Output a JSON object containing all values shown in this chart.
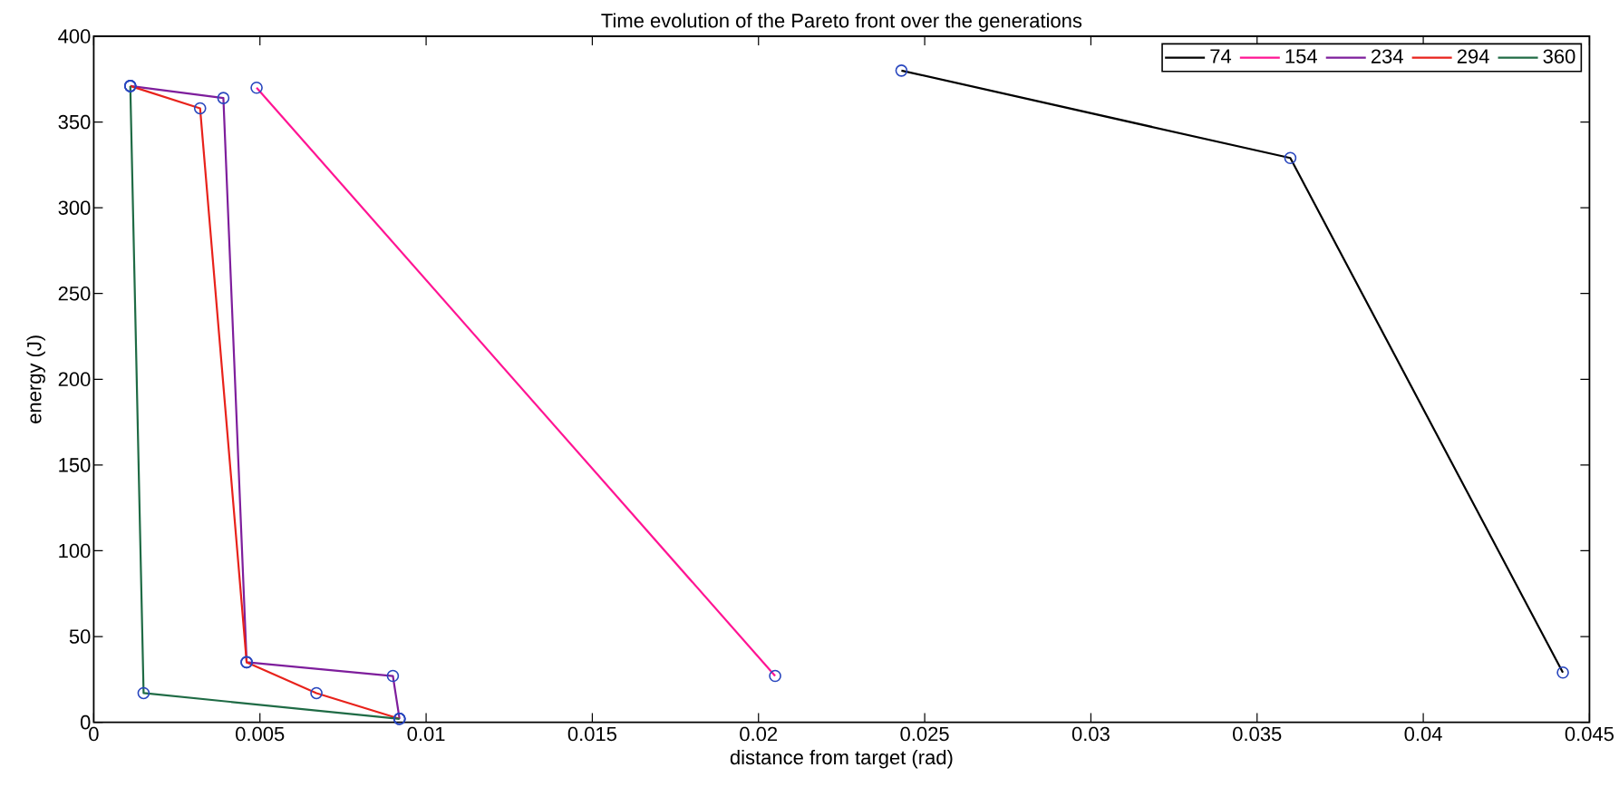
{
  "chart_data": {
    "type": "line",
    "title": "Time evolution of the Pareto front over the generations",
    "xlabel": "distance from target (rad)",
    "ylabel": "energy (J)",
    "xlim": [
      0,
      0.045
    ],
    "xticks": [
      0,
      0.005,
      0.01,
      0.015,
      0.02,
      0.025,
      0.03,
      0.035,
      0.04,
      0.045
    ],
    "ylim": [
      0,
      400
    ],
    "yticks": [
      0,
      50,
      100,
      150,
      200,
      250,
      300,
      350,
      400
    ],
    "legend": "top right",
    "marker": "circle",
    "line_style": "solid",
    "series": [
      {
        "name": "74",
        "color": "#000000",
        "x": [
          0.0243,
          0.036,
          0.0442
        ],
        "values": [
          380,
          329,
          29
        ]
      },
      {
        "name": "154",
        "color": "#ff1493",
        "x": [
          0.0049,
          0.0205
        ],
        "values": [
          370,
          27
        ]
      },
      {
        "name": "234",
        "color": "#7e1e9c",
        "x": [
          0.0011,
          0.0039,
          0.0046,
          0.009,
          0.0092
        ],
        "values": [
          371,
          364,
          35,
          27,
          2
        ]
      },
      {
        "name": "294",
        "color": "#e8221b",
        "x": [
          0.0011,
          0.0032,
          0.0046,
          0.0067,
          0.0092
        ],
        "values": [
          371,
          358,
          35,
          17,
          2
        ]
      },
      {
        "name": "360",
        "color": "#1f6b45",
        "x": [
          0.0011,
          0.0015,
          0.0092
        ],
        "values": [
          371,
          17,
          2
        ]
      }
    ]
  }
}
